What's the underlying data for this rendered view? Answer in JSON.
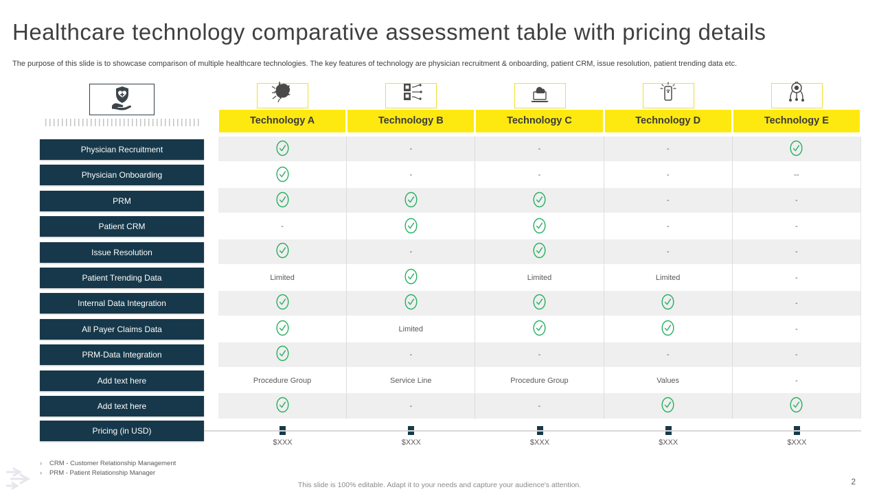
{
  "slide": {
    "title": "Healthcare technology comparative assessment table with pricing details",
    "subtitle": "The purpose of this slide is to showcase comparison of multiple healthcare technologies. The key features of technology are physician recruitment & onboarding, patient CRM,  issue resolution, patient trending data etc.",
    "page_number": "2",
    "editable_note": "This slide is 100% editable.  Adapt it to your needs and capture your audience's attention.",
    "footnote_bullet": "›",
    "footnotes": [
      "CRM  - Customer Relationship Management",
      "PRM  - Patient Relationship Manager"
    ]
  },
  "colors": {
    "accent_yellow": "#fde90f",
    "dark_teal": "#16384a",
    "check_green": "#27ae60",
    "stripe_gray": "#efefef",
    "line_gray": "#d9d9d9"
  },
  "icons": {
    "left_panel": "shield-hand-icon",
    "columns": [
      "bacteria-icon",
      "server-network-icon",
      "laptop-cloud-icon",
      "smart-device-icon",
      "robot-cam-icon"
    ]
  },
  "chart_data": {
    "type": "table",
    "title": "Healthcare technology comparative assessment table with pricing details",
    "columns": [
      "Technology A",
      "Technology B",
      "Technology C",
      "Technology D",
      "Technology E"
    ],
    "rows": [
      {
        "label": "Physician Recruitment",
        "cells": [
          "check",
          "-",
          "-",
          "-",
          "check"
        ]
      },
      {
        "label": "Physician Onboarding",
        "cells": [
          "check",
          "-",
          "-",
          "-",
          "--"
        ]
      },
      {
        "label": "PRM",
        "cells": [
          "check",
          "check",
          "check",
          "-",
          "-"
        ]
      },
      {
        "label": "Patient CRM",
        "cells": [
          "-",
          "check",
          "check",
          "-",
          "-"
        ]
      },
      {
        "label": "Issue Resolution",
        "cells": [
          "check",
          "-",
          "check",
          "-",
          "-"
        ]
      },
      {
        "label": "Patient Trending  Data",
        "cells": [
          "Limited",
          "check",
          "Limited",
          "Limited",
          "-"
        ]
      },
      {
        "label": "Internal  Data Integration",
        "cells": [
          "check",
          "check",
          "check",
          "check",
          "-"
        ]
      },
      {
        "label": "All Payer  Claims Data",
        "cells": [
          "check",
          "Limited",
          "check",
          "check",
          "-"
        ]
      },
      {
        "label": "PRM-Data  Integration",
        "cells": [
          "check",
          "-",
          "-",
          "-",
          "-"
        ]
      },
      {
        "label": "Add text here",
        "cells": [
          "Procedure Group",
          "Service Line",
          "Procedure Group",
          "Values",
          "-"
        ]
      },
      {
        "label": "Add text here",
        "cells": [
          "check",
          "-",
          "-",
          "check",
          "check"
        ]
      }
    ],
    "pricing": {
      "label": "Pricing (in USD)",
      "values": [
        "$XXX",
        "$XXX",
        "$XXX",
        "$XXX",
        "$XXX"
      ]
    }
  }
}
